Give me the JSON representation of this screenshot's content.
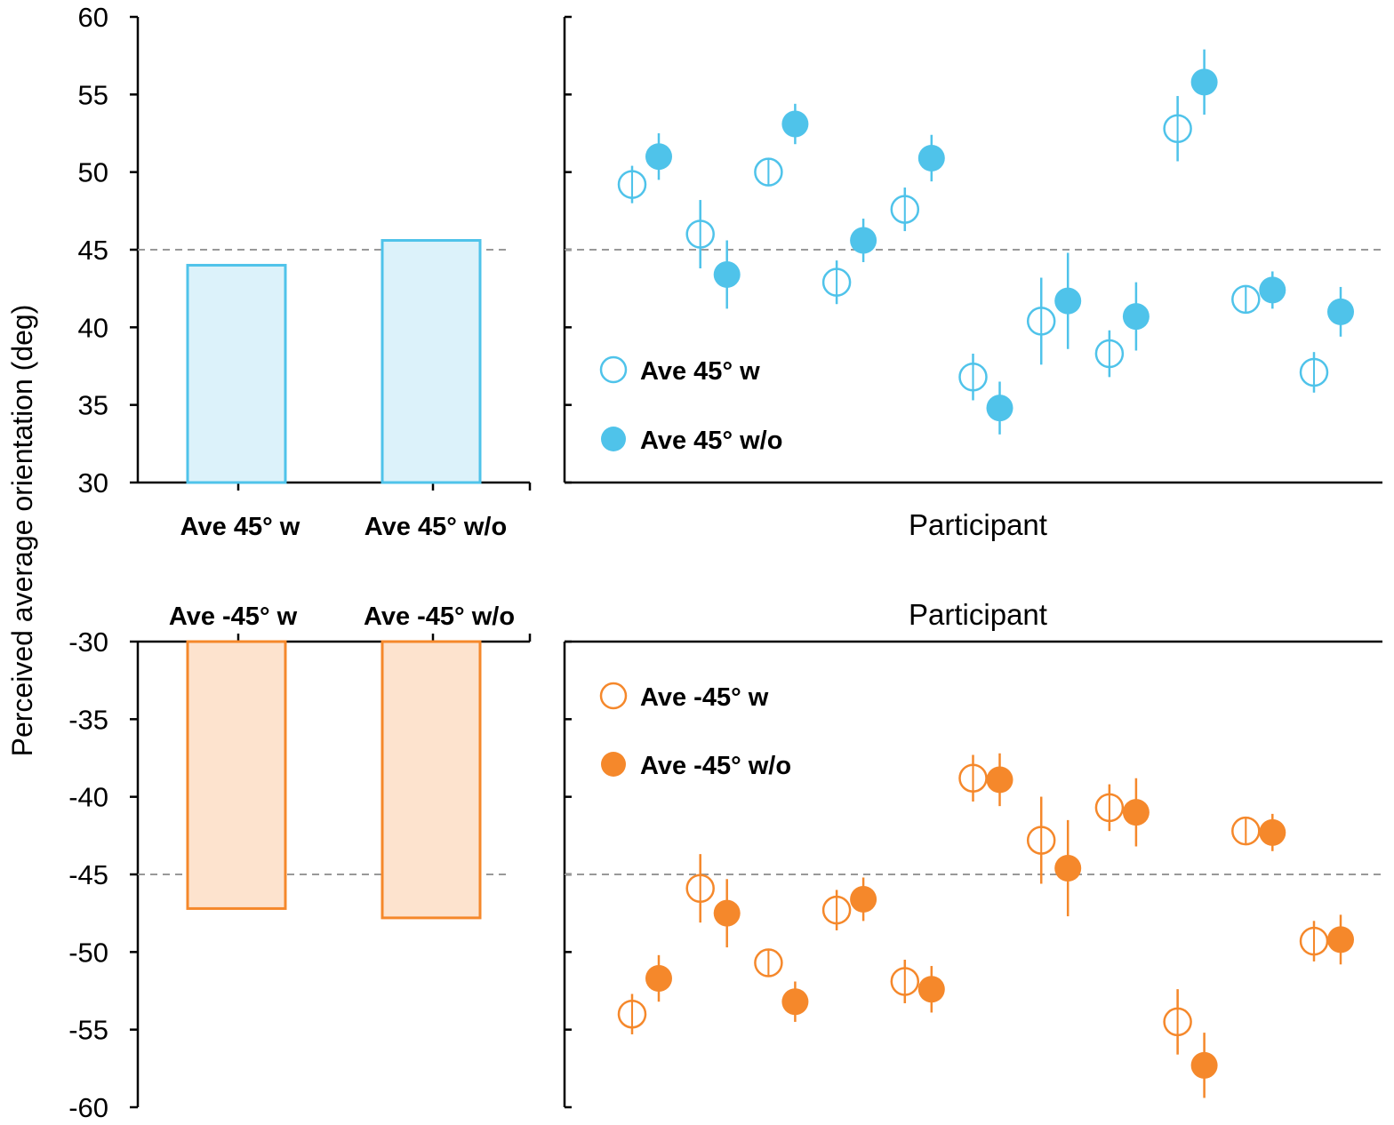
{
  "y_axis_title": "Perceived average orientation (deg)",
  "colors": {
    "blue": "#4FC3EA",
    "blue_fill": "#DCF2FA",
    "orange": "#F5882B",
    "orange_fill": "#FDE3CE",
    "reference_line": "#999999"
  },
  "chart_data": [
    {
      "type": "bar",
      "panel": "top-left",
      "ylim": [
        30,
        60
      ],
      "yticks": [
        "60",
        "55",
        "50",
        "45",
        "40",
        "35",
        "30"
      ],
      "reference_line": 45,
      "categories": [
        "Ave 45° w",
        "Ave 45° w/o"
      ],
      "values": [
        44.0,
        45.6
      ],
      "color": "blue"
    },
    {
      "type": "scatter",
      "panel": "top-right",
      "xlabel": "Participant",
      "ylim": [
        30,
        60
      ],
      "reference_line": 45,
      "legend_position": "lower-left",
      "series": [
        {
          "name": "Ave 45° w",
          "marker": "open-circle",
          "values": [
            49.2,
            46.0,
            50.0,
            42.9,
            47.6,
            36.8,
            40.4,
            38.3,
            52.8,
            41.8,
            37.1
          ],
          "errors": [
            1.2,
            2.2,
            0.9,
            1.4,
            1.4,
            1.5,
            2.8,
            1.5,
            2.1,
            0.9,
            1.3
          ]
        },
        {
          "name": "Ave 45° w/o",
          "marker": "filled-circle",
          "values": [
            51.0,
            43.4,
            53.1,
            45.6,
            50.9,
            34.8,
            41.7,
            40.7,
            55.8,
            42.4,
            41.0
          ],
          "errors": [
            1.5,
            2.2,
            1.3,
            1.4,
            1.5,
            1.7,
            3.1,
            2.2,
            2.1,
            1.2,
            1.6
          ]
        }
      ]
    },
    {
      "type": "bar",
      "panel": "bottom-left",
      "ylim": [
        -60,
        -30
      ],
      "yticks": [
        "-30",
        "-35",
        "-40",
        "-45",
        "-50",
        "-55",
        "-60"
      ],
      "reference_line": -45,
      "categories": [
        "Ave -45° w",
        "Ave -45° w/o"
      ],
      "values": [
        -47.2,
        -47.8
      ],
      "color": "orange"
    },
    {
      "type": "scatter",
      "panel": "bottom-right",
      "xlabel": "Participant",
      "ylim": [
        -60,
        -30
      ],
      "reference_line": -45,
      "legend_position": "upper-left",
      "series": [
        {
          "name": "Ave -45° w",
          "marker": "open-circle",
          "values": [
            -54.0,
            -45.9,
            -50.7,
            -47.3,
            -51.9,
            -38.8,
            -42.8,
            -40.7,
            -54.5,
            -42.2,
            -49.3
          ],
          "errors": [
            1.3,
            2.2,
            0.9,
            1.3,
            1.4,
            1.5,
            2.8,
            1.5,
            2.1,
            0.9,
            1.3
          ]
        },
        {
          "name": "Ave -45° w/o",
          "marker": "filled-circle",
          "values": [
            -51.7,
            -47.5,
            -53.2,
            -46.6,
            -52.4,
            -38.9,
            -44.6,
            -41.0,
            -57.3,
            -42.3,
            -49.2
          ],
          "errors": [
            1.5,
            2.2,
            1.3,
            1.4,
            1.5,
            1.7,
            3.1,
            2.2,
            2.1,
            1.2,
            1.6
          ]
        }
      ]
    }
  ]
}
